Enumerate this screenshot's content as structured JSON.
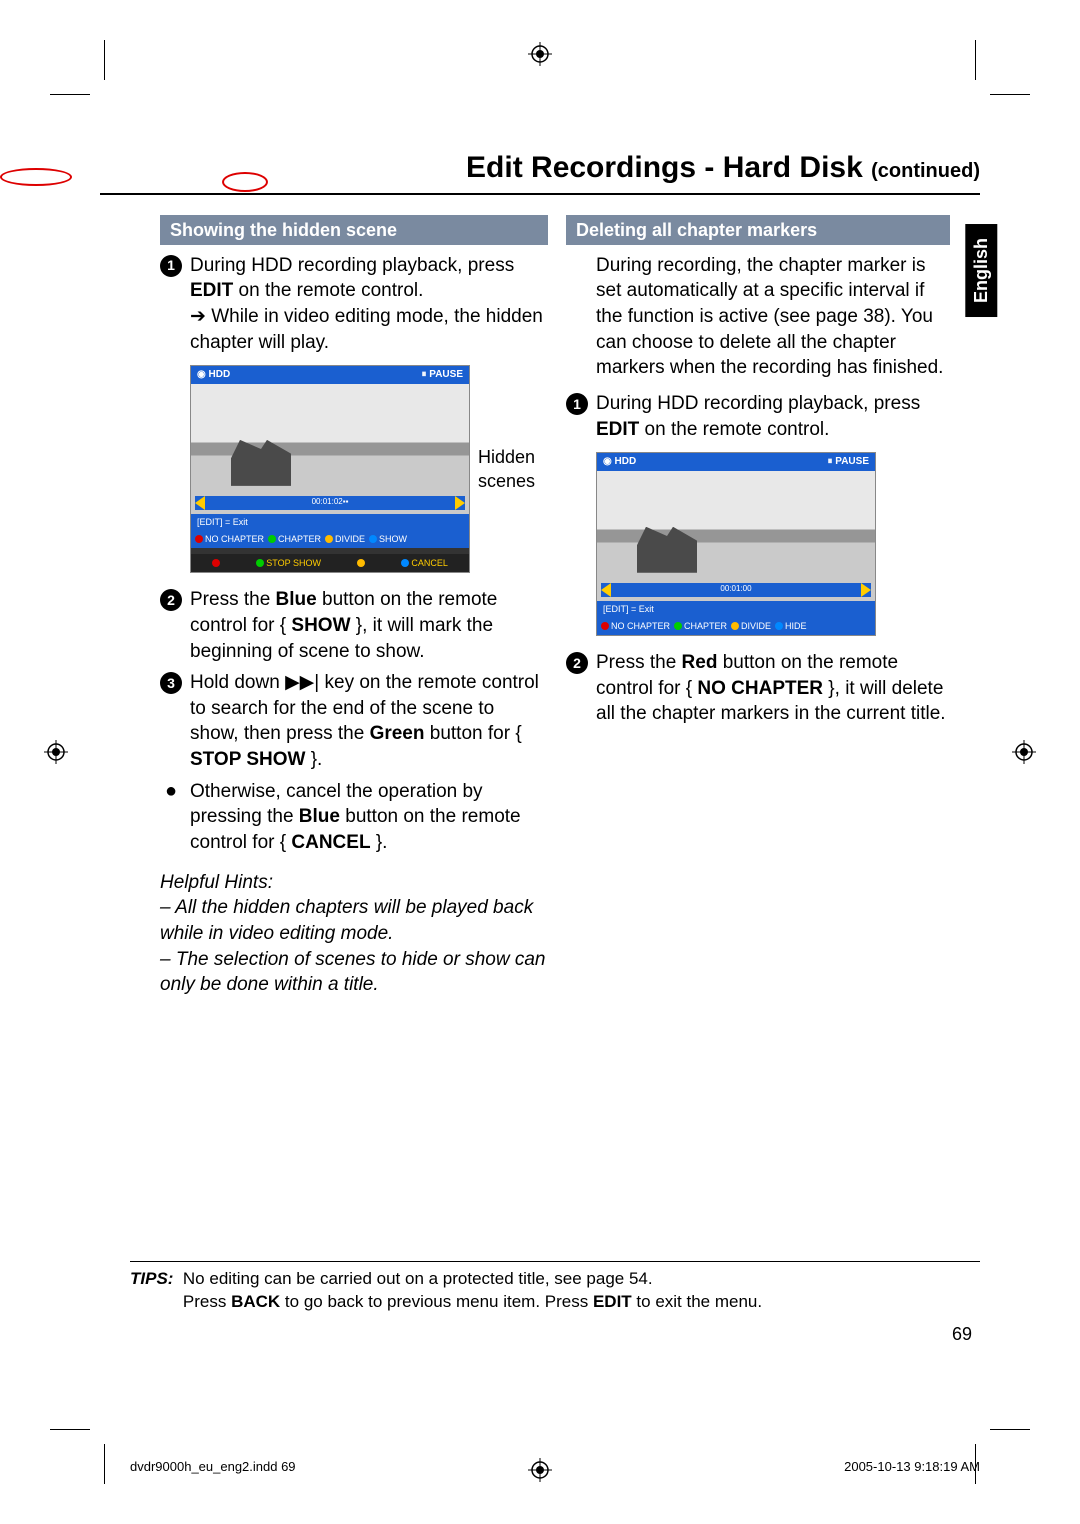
{
  "title_main": "Edit Recordings - Hard Disk",
  "title_cont": "(continued)",
  "lang_tab": "English",
  "left": {
    "section": "Showing the hidden scene",
    "s1a": "During HDD recording playback, press ",
    "s1b": "EDIT",
    "s1c": " on the remote control.",
    "s1_arrow": "While in video editing mode, the hidden chapter will play.",
    "caption": "Hidden scenes",
    "s2a": "Press the ",
    "s2b": "Blue",
    "s2c": " button on the remote control for { ",
    "s2d": "SHOW",
    "s2e": " }, it will mark the beginning of scene to show.",
    "s3a": "Hold down ",
    "s3b": "▶▶|",
    "s3c": " key on the remote control to search for the end of the scene to show, then press the ",
    "s3d": "Green",
    "s3e": " button for { ",
    "s3f": "STOP SHOW",
    "s3g": " }.",
    "s4a": "Otherwise, cancel the operation by pressing the ",
    "s4b": "Blue",
    "s4c": " button on the remote control for { ",
    "s4d": "CANCEL",
    "s4e": " }.",
    "hints_title": "Helpful Hints:",
    "hint1": "– All the hidden chapters will be played back while in video editing mode.",
    "hint2": "– The selection of scenes to hide or show can only be done within a title.",
    "ss": {
      "hdd": "HDD",
      "pause": "⏸ PAUSE",
      "time": "00:01:02",
      "exit": "[EDIT] = Exit",
      "leg": [
        {
          "label": "NO CHAPTER",
          "color": "#d00"
        },
        {
          "label": "CHAPTER",
          "color": "#0c0"
        },
        {
          "label": "DIVIDE",
          "color": "#fb0"
        },
        {
          "label": "SHOW",
          "color": "#08f"
        }
      ],
      "ctl": [
        {
          "label": "",
          "color": "#d00"
        },
        {
          "label": "STOP SHOW",
          "color": "#0c0"
        },
        {
          "label": "",
          "color": "#fb0"
        },
        {
          "label": "CANCEL",
          "color": "#08f"
        }
      ]
    }
  },
  "right": {
    "section": "Deleting all chapter markers",
    "intro": "During recording, the chapter marker is set automatically at a specific interval if the function is active (see page 38). You can choose to delete all the chapter markers when the recording has finished.",
    "s1a": "During HDD recording playback, press ",
    "s1b": "EDIT",
    "s1c": " on the remote control.",
    "s2a": "Press the ",
    "s2b": "Red",
    "s2c": " button on the remote control for { ",
    "s2d": "NO CHAPTER",
    "s2e": " }, it will delete all the chapter markers in the current title.",
    "ss": {
      "hdd": "HDD",
      "pause": "⏸ PAUSE",
      "time": "00:01:00",
      "exit": "[EDIT] = Exit",
      "leg": [
        {
          "label": "NO CHAPTER",
          "color": "#d00"
        },
        {
          "label": "CHAPTER",
          "color": "#0c0"
        },
        {
          "label": "DIVIDE",
          "color": "#fb0"
        },
        {
          "label": "HIDE",
          "color": "#08f"
        }
      ]
    }
  },
  "tips_label": "TIPS:",
  "tips_1": "No editing can be carried out on a protected title, see page 54.",
  "tips_2a": "Press ",
  "tips_2b": "BACK",
  "tips_2c": " to go back to previous menu item. Press ",
  "tips_2d": "EDIT",
  "tips_2e": " to exit the menu.",
  "page_num": "69",
  "footer_file": "dvdr9000h_eu_eng2.indd   69",
  "footer_time": "2005-10-13   9:18:19 AM"
}
